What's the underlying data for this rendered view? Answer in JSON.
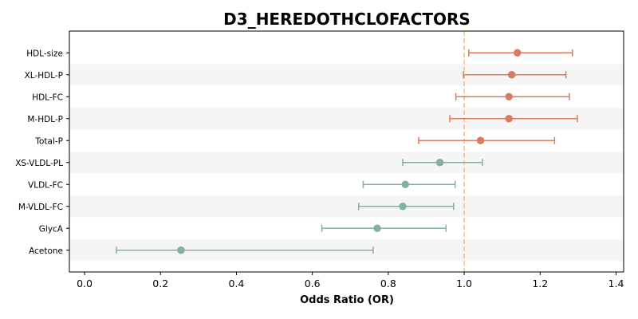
{
  "chart_data": {
    "type": "forest",
    "title": "D3_HEREDOTHCLOFACTORS",
    "xlabel": "Odds Ratio (OR)",
    "ylabel": "",
    "xlim": [
      -0.04,
      1.42
    ],
    "xticks": [
      0.0,
      0.2,
      0.4,
      0.6,
      0.8,
      1.0,
      1.2,
      1.4
    ],
    "reference_line": 1.0,
    "grid": false,
    "alternating_row_bands": true,
    "colors": {
      "above_reference": "#d97b61",
      "below_reference": "#82b39a",
      "reference_line": "#f5c28c",
      "band": "#f5f5f5"
    },
    "rows": [
      {
        "label": "HDL-size",
        "or": 1.14,
        "ci_low": 1.012,
        "ci_high": 1.285
      },
      {
        "label": "XL-HDL-P",
        "or": 1.125,
        "ci_low": 0.998,
        "ci_high": 1.268
      },
      {
        "label": "HDL-FC",
        "or": 1.118,
        "ci_low": 0.978,
        "ci_high": 1.277
      },
      {
        "label": "M-HDL-P",
        "or": 1.118,
        "ci_low": 0.962,
        "ci_high": 1.298
      },
      {
        "label": "Total-P",
        "or": 1.043,
        "ci_low": 0.88,
        "ci_high": 1.238
      },
      {
        "label": "XS-VLDL-PL",
        "or": 0.936,
        "ci_low": 0.838,
        "ci_high": 1.048
      },
      {
        "label": "VLDL-FC",
        "or": 0.845,
        "ci_low": 0.734,
        "ci_high": 0.976
      },
      {
        "label": "M-VLDL-FC",
        "or": 0.838,
        "ci_low": 0.722,
        "ci_high": 0.972
      },
      {
        "label": "GlycA",
        "or": 0.771,
        "ci_low": 0.625,
        "ci_high": 0.952
      },
      {
        "label": "Acetone",
        "or": 0.254,
        "ci_low": 0.084,
        "ci_high": 0.76
      }
    ]
  }
}
